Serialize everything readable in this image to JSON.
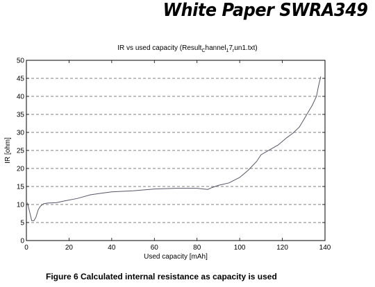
{
  "header": {
    "text": "White Paper SWRA349"
  },
  "caption": "Figure 6 Calculated internal resistance as capacity is used",
  "chart_data": {
    "type": "line",
    "title": "IR vs used capacity (Result_Channel_1_7_run1.txt)",
    "title_parts": [
      "IR vs used capacity (Result",
      "C",
      "hannel",
      "1",
      "7",
      "r",
      "un1.txt)"
    ],
    "xlabel": "Used capacity [mAh]",
    "ylabel": "IR [ohm]",
    "xlim": [
      0,
      140
    ],
    "ylim": [
      0,
      50
    ],
    "xticks": [
      0,
      20,
      40,
      60,
      80,
      100,
      120,
      140
    ],
    "yticks": [
      0,
      5,
      10,
      15,
      20,
      25,
      30,
      35,
      40,
      45,
      50
    ],
    "grid": "horizontal dashed",
    "line_color": "#555566",
    "series": [
      {
        "name": "",
        "x": [
          0.5,
          1.5,
          2.5,
          3.5,
          4.5,
          5.5,
          6.5,
          8,
          10,
          14,
          18,
          24,
          30,
          36,
          40,
          50,
          60,
          70,
          80,
          85,
          87,
          90,
          95,
          100,
          104,
          108,
          110,
          115,
          118,
          122,
          125,
          128,
          130,
          132,
          134,
          136,
          137,
          138
        ],
        "y": [
          10.5,
          8,
          5.5,
          5.5,
          6.5,
          8.5,
          9.5,
          10.2,
          10.4,
          10.5,
          11,
          11.7,
          12.7,
          13.2,
          13.5,
          13.8,
          14.3,
          14.5,
          14.5,
          14.2,
          14.7,
          15.3,
          16,
          17.5,
          19.5,
          22,
          23.8,
          25.5,
          26.5,
          28.5,
          29.8,
          31.5,
          33.5,
          35.5,
          37.5,
          40,
          43,
          45.5
        ]
      }
    ]
  }
}
